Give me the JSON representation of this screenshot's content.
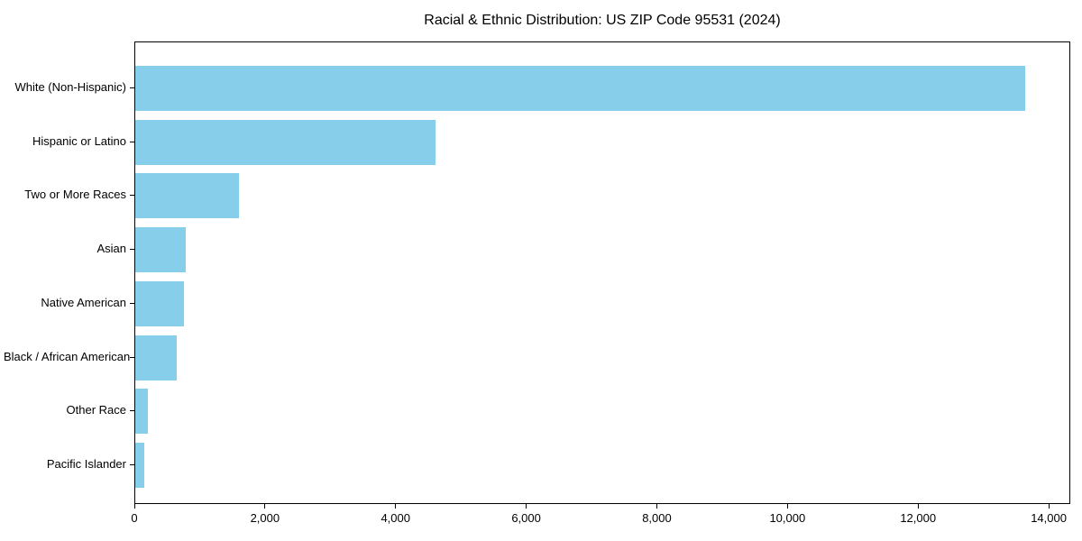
{
  "chart_data": {
    "type": "bar",
    "orientation": "horizontal",
    "title": "Racial & Ethnic Distribution: US ZIP Code 95531 (2024)",
    "xlabel": "",
    "ylabel": "",
    "categories": [
      "White (Non-Hispanic)",
      "Hispanic or Latino",
      "Two or More Races",
      "Asian",
      "Native American",
      "Black / African American",
      "Other Race",
      "Pacific Islander"
    ],
    "values": [
      13620,
      4600,
      1590,
      775,
      745,
      635,
      195,
      140
    ],
    "xlim": [
      0,
      14330
    ],
    "xticks": [
      0,
      2000,
      4000,
      6000,
      8000,
      10000,
      12000,
      14000
    ],
    "xtick_labels": [
      "0",
      "2,000",
      "4,000",
      "6,000",
      "8,000",
      "10,000",
      "12,000",
      "14,000"
    ],
    "grid": false,
    "legend": null,
    "bar_color": "#87CEEB",
    "axis_color": "#000000",
    "background_color": "#FFFFFF",
    "text_color": "#000000"
  }
}
